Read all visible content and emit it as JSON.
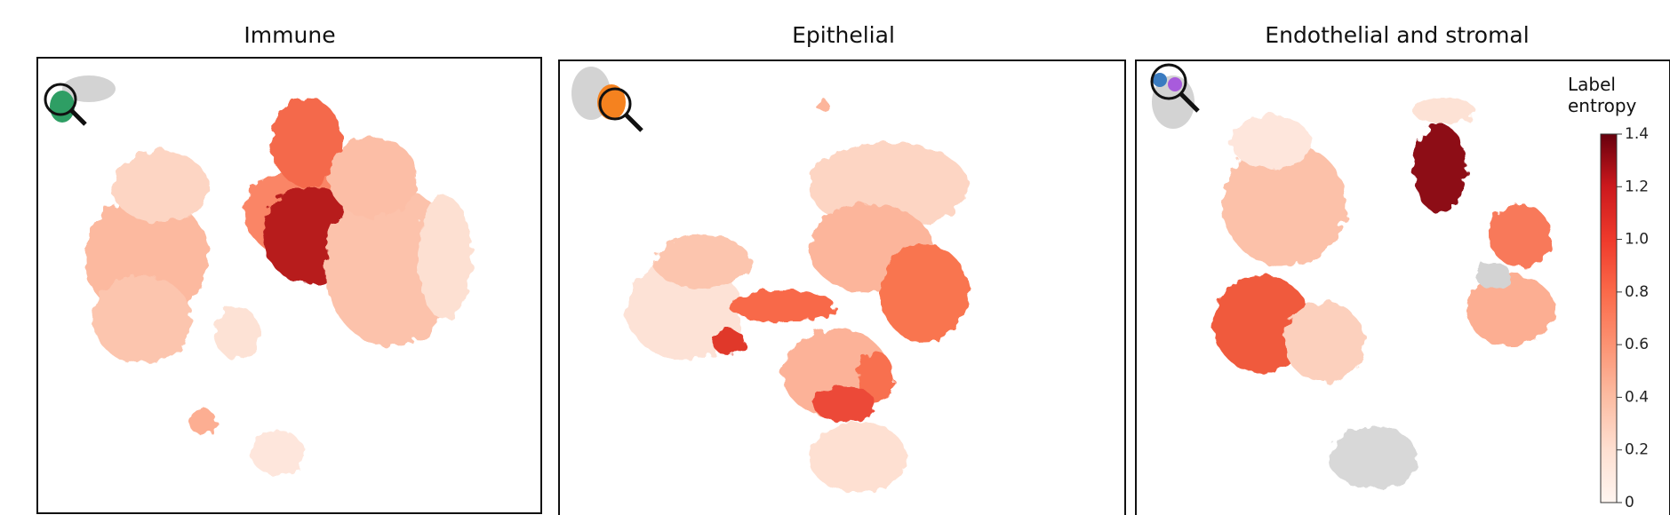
{
  "panels": [
    {
      "title": "Immune"
    },
    {
      "title": "Epithelial"
    },
    {
      "title": "Endothelial and stromal"
    }
  ],
  "colorbar": {
    "label": "Label entropy",
    "lim": [
      0,
      1.4
    ],
    "ticks": [
      0,
      0.2,
      0.4,
      0.6,
      0.8,
      {
        "value": 1,
        "label": "1.0"
      },
      1.2,
      1.4
    ]
  }
}
